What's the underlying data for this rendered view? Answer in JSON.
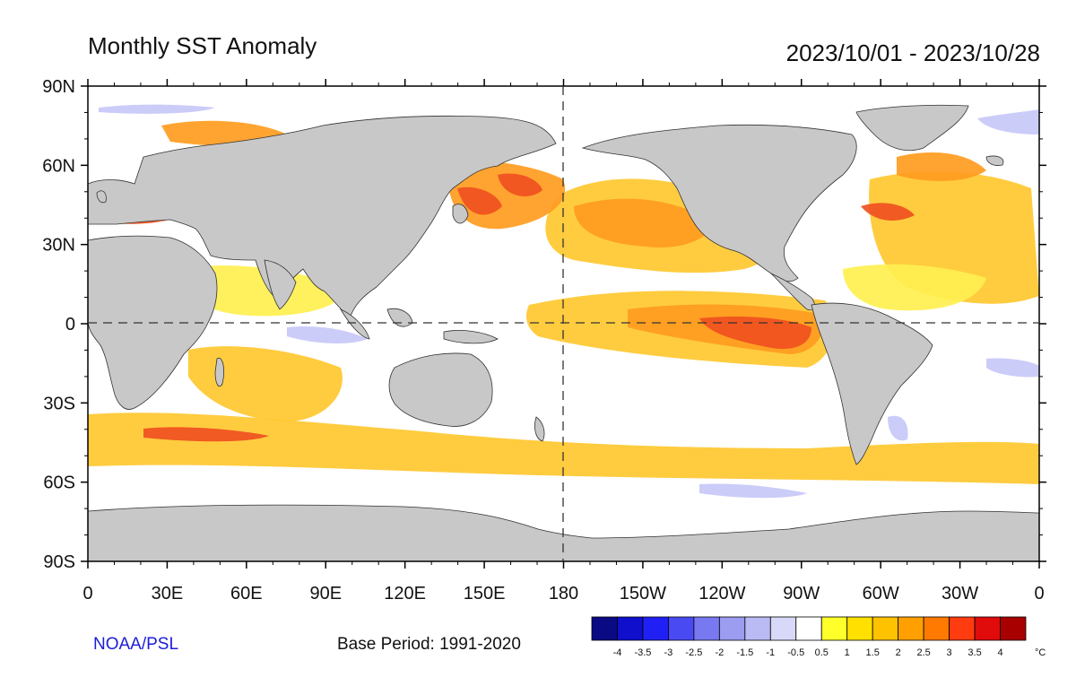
{
  "title": "Monthly SST Anomaly",
  "date_range": "2023/10/01 - 2023/10/28",
  "credit": "NOAA/PSL",
  "base_period": "Base Period: 1991-2020",
  "lat_ticks": [
    "90N",
    "60N",
    "30N",
    "0",
    "30S",
    "60S",
    "90S"
  ],
  "lon_ticks": [
    "0",
    "30E",
    "60E",
    "90E",
    "120E",
    "150E",
    "180",
    "150W",
    "120W",
    "90W",
    "60W",
    "30W",
    "0"
  ],
  "colorbar": {
    "labels": [
      "-4",
      "-3.5",
      "-3",
      "-2.5",
      "-2",
      "-1.5",
      "-1",
      "-0.5",
      "0.5",
      "1",
      "1.5",
      "2",
      "2.5",
      "3",
      "3.5",
      "4"
    ],
    "unit": "°C",
    "colors": [
      "#0a0a84",
      "#0f0fcc",
      "#2020f4",
      "#4a4af2",
      "#7878f0",
      "#9c9cf0",
      "#babaf4",
      "#d8d8f8",
      "#ffffff",
      "#ffff2a",
      "#ffe000",
      "#ffc200",
      "#ffa000",
      "#ff7a00",
      "#ff3c10",
      "#e00c0c",
      "#a80000"
    ]
  },
  "colors": {
    "land": "#c8c8c8",
    "ocean_neutral": "#ffffff",
    "warm_weak": "#fff050",
    "warm_mid": "#ffc830",
    "warm_strong": "#ff9c20",
    "warm_hot": "#f05020",
    "cool_weak": "#c8c8f8"
  }
}
